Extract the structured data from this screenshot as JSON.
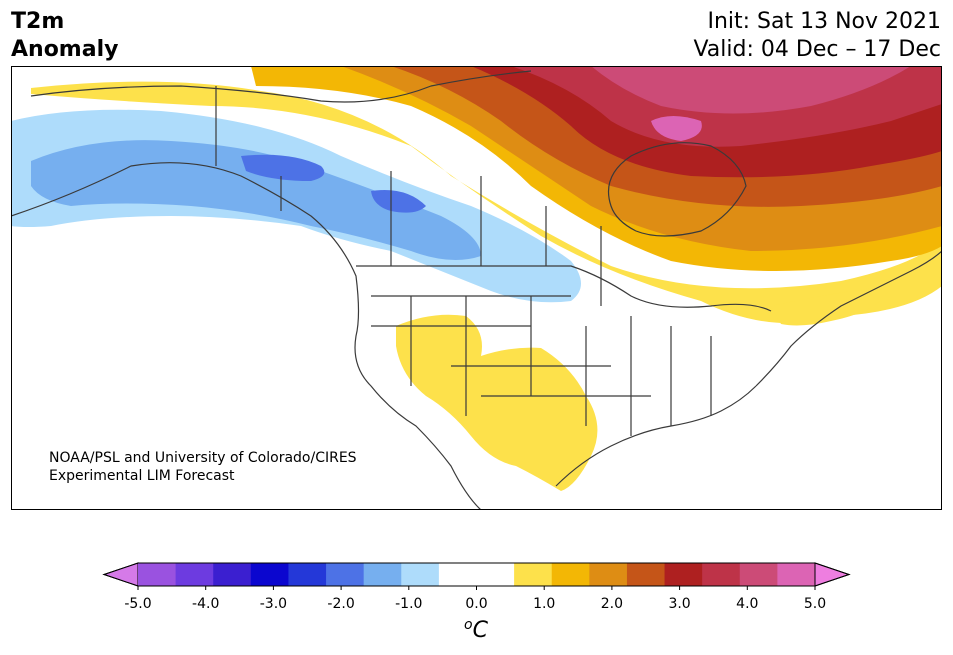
{
  "title": {
    "variable": "T2m",
    "quantity": "Anomaly"
  },
  "dates": {
    "init": "Init: Sat 13 Nov 2021",
    "valid": "Valid: 04 Dec – 17 Dec"
  },
  "credit": {
    "line1": "NOAA/PSL and University of Colorado/CIRES",
    "line2": "Experimental LIM Forecast"
  },
  "colorbar": {
    "unit_label": "oC",
    "tick_labels": [
      "-5.0",
      "-4.0",
      "-3.0",
      "-2.0",
      "-1.0",
      "0.0",
      "1.0",
      "2.0",
      "3.0",
      "4.0",
      "5.0"
    ],
    "under_color": "#d57ae8",
    "over_color": "#ee7ee0",
    "colors": [
      "#9a52e0",
      "#6d3be0",
      "#3b1fd0",
      "#0b06cf",
      "#2438d8",
      "#4d72e6",
      "#76afef",
      "#aedcfb",
      "#ffffff",
      "#ffffff",
      "#fde14b",
      "#f3b705",
      "#de8d14",
      "#c55518",
      "#ae2020",
      "#be3348",
      "#cc4b77",
      "#dc64b4"
    ]
  },
  "colors": {
    "warm_1": "#fde14b",
    "warm_2": "#f3b705",
    "warm_3": "#de8d14",
    "warm_4": "#c55518",
    "warm_5": "#ae2020",
    "warm_6": "#be3348",
    "warm_7": "#cc4b77",
    "warm_8": "#dc64b4",
    "cool_1": "#aedcfb",
    "cool_2": "#76afef",
    "cool_3": "#4d72e6",
    "coast": "#3a3a3a"
  }
}
